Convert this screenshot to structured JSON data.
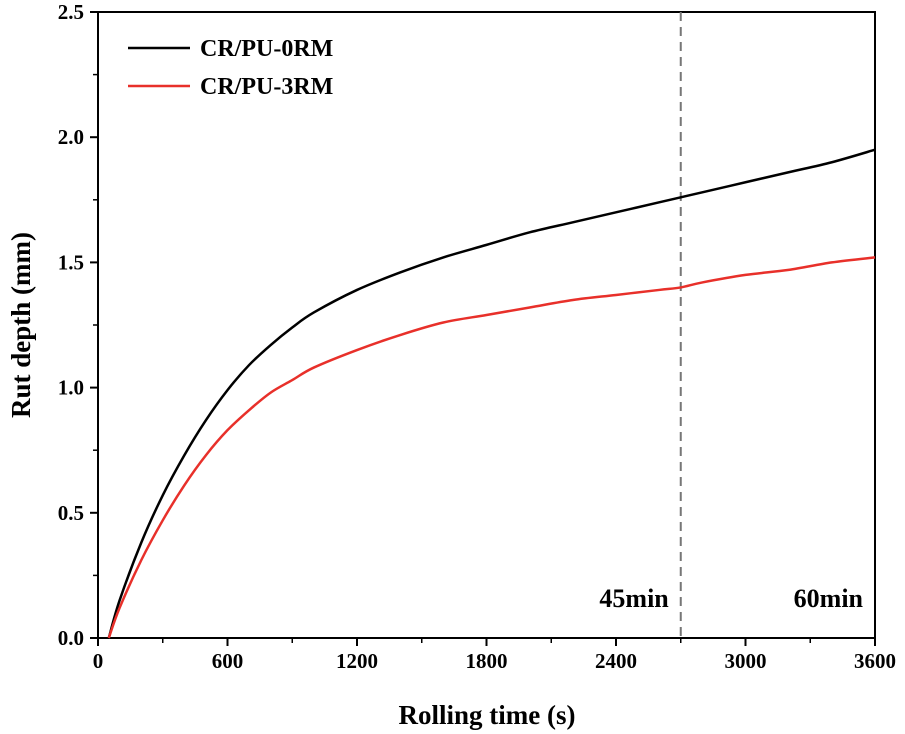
{
  "chart_data": {
    "type": "line",
    "xlabel": "Rolling time (s)",
    "ylabel": "Rut depth (mm)",
    "xlim": [
      0,
      3600
    ],
    "ylim": [
      0,
      2.5
    ],
    "x_ticks": [
      0,
      600,
      1200,
      1800,
      2400,
      3000,
      3600
    ],
    "x_tick_labels": [
      "0",
      "600",
      "1200",
      "1800",
      "2400",
      "3000",
      "3600"
    ],
    "y_ticks": [
      0,
      0.5,
      1.0,
      1.5,
      2.0,
      2.5
    ],
    "y_tick_labels": [
      "0.0",
      "0.5",
      "1.0",
      "1.5",
      "2.0",
      "2.5"
    ],
    "grid": false,
    "legend_position": "top-left",
    "series": [
      {
        "name": "CR/PU-0RM",
        "color": "#000000",
        "x": [
          50,
          100,
          200,
          300,
          400,
          500,
          600,
          700,
          800,
          900,
          1000,
          1200,
          1400,
          1600,
          1800,
          2000,
          2200,
          2400,
          2600,
          2700,
          2800,
          3000,
          3200,
          3400,
          3600
        ],
        "y": [
          0.0,
          0.15,
          0.38,
          0.57,
          0.73,
          0.87,
          0.99,
          1.09,
          1.17,
          1.24,
          1.3,
          1.39,
          1.46,
          1.52,
          1.57,
          1.62,
          1.66,
          1.7,
          1.74,
          1.76,
          1.78,
          1.82,
          1.86,
          1.9,
          1.95
        ]
      },
      {
        "name": "CR/PU-3RM",
        "color": "#e8302a",
        "x": [
          50,
          100,
          200,
          300,
          400,
          500,
          600,
          700,
          800,
          900,
          1000,
          1200,
          1400,
          1600,
          1800,
          2000,
          2200,
          2400,
          2600,
          2700,
          2800,
          3000,
          3200,
          3400,
          3600
        ],
        "y": [
          0.0,
          0.12,
          0.31,
          0.47,
          0.61,
          0.73,
          0.83,
          0.91,
          0.98,
          1.03,
          1.08,
          1.15,
          1.21,
          1.26,
          1.29,
          1.32,
          1.35,
          1.37,
          1.39,
          1.4,
          1.42,
          1.45,
          1.47,
          1.5,
          1.52
        ]
      }
    ],
    "reference_line": {
      "x": 2700,
      "style": "dashed",
      "color": "#777777"
    },
    "annotations": [
      {
        "text": "45min",
        "x": 2700,
        "side": "left"
      },
      {
        "text": "60min",
        "x": 3600,
        "side": "left"
      }
    ]
  }
}
